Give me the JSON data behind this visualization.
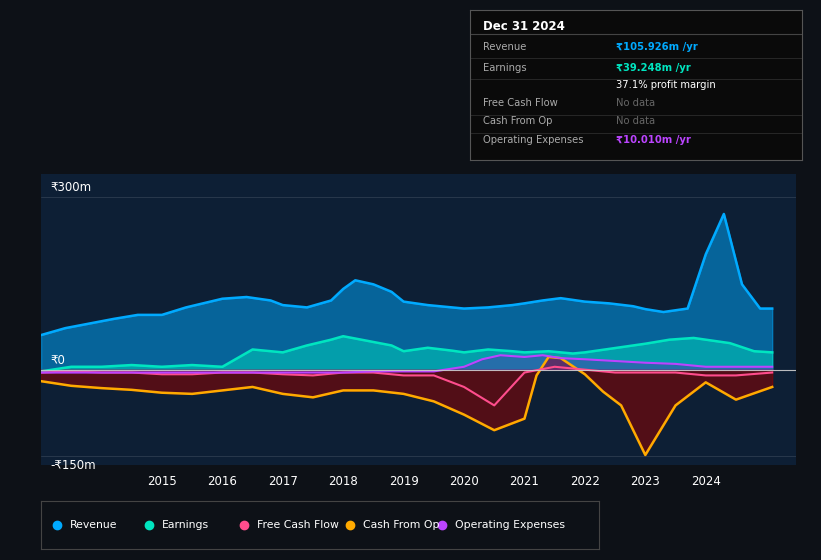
{
  "bg_color": "#0d1117",
  "plot_bg_color": "#0d1f35",
  "ylim": [
    -165,
    340
  ],
  "xlim": [
    2013.0,
    2025.5
  ],
  "xticks": [
    2015,
    2016,
    2017,
    2018,
    2019,
    2020,
    2021,
    2022,
    2023,
    2024
  ],
  "ylabel_top": "₹300m",
  "ylabel_zero": "₹0",
  "ylabel_bottom": "-₹150m",
  "ytick_vals": [
    300,
    0,
    -150
  ],
  "revenue_color": "#00aaff",
  "earnings_color": "#00e5c0",
  "fcf_color": "#ff4d8d",
  "cashfromop_color": "#ffaa00",
  "opex_color": "#bb44ff",
  "cashfromop_fill_color": "#8b0000",
  "legend_items": [
    "Revenue",
    "Earnings",
    "Free Cash Flow",
    "Cash From Op",
    "Operating Expenses"
  ],
  "legend_colors": [
    "#00aaff",
    "#00e5c0",
    "#ff4d8d",
    "#ffaa00",
    "#bb44ff"
  ],
  "info_date": "Dec 31 2024",
  "info_rows": [
    {
      "label": "Revenue",
      "value": "₹105.926m /yr",
      "color": "#00aaff"
    },
    {
      "label": "Earnings",
      "value": "₹39.248m /yr",
      "color": "#00e5c0"
    },
    {
      "label": "",
      "value": "37.1% profit margin",
      "color": "#ffffff"
    },
    {
      "label": "Free Cash Flow",
      "value": "No data",
      "color": "#666666"
    },
    {
      "label": "Cash From Op",
      "value": "No data",
      "color": "#666666"
    },
    {
      "label": "Operating Expenses",
      "value": "₹10.010m /yr",
      "color": "#bb44ff"
    }
  ],
  "revenue_x": [
    2013.0,
    2013.4,
    2013.8,
    2014.2,
    2014.6,
    2015.0,
    2015.4,
    2015.8,
    2016.0,
    2016.4,
    2016.8,
    2017.0,
    2017.4,
    2017.8,
    2018.0,
    2018.2,
    2018.5,
    2018.8,
    2019.0,
    2019.4,
    2019.8,
    2020.0,
    2020.4,
    2020.8,
    2021.0,
    2021.3,
    2021.6,
    2022.0,
    2022.4,
    2022.8,
    2023.0,
    2023.3,
    2023.7,
    2024.0,
    2024.3,
    2024.6,
    2024.9,
    2025.1
  ],
  "revenue_y": [
    60,
    72,
    80,
    88,
    95,
    95,
    108,
    118,
    123,
    126,
    120,
    112,
    108,
    120,
    140,
    155,
    148,
    135,
    118,
    112,
    108,
    106,
    108,
    112,
    115,
    120,
    124,
    118,
    115,
    110,
    105,
    100,
    106,
    200,
    270,
    148,
    106,
    106
  ],
  "earnings_x": [
    2013.0,
    2013.5,
    2014.0,
    2014.5,
    2015.0,
    2015.5,
    2016.0,
    2016.5,
    2017.0,
    2017.4,
    2017.8,
    2018.0,
    2018.4,
    2018.8,
    2019.0,
    2019.4,
    2019.8,
    2020.0,
    2020.4,
    2020.8,
    2021.0,
    2021.4,
    2021.8,
    2022.0,
    2022.4,
    2022.8,
    2023.0,
    2023.4,
    2023.8,
    2024.0,
    2024.4,
    2024.8,
    2025.1
  ],
  "earnings_y": [
    -3,
    5,
    5,
    8,
    5,
    8,
    5,
    35,
    30,
    42,
    52,
    58,
    50,
    42,
    32,
    38,
    33,
    30,
    35,
    32,
    30,
    32,
    28,
    30,
    36,
    42,
    45,
    52,
    55,
    52,
    46,
    32,
    30
  ],
  "fcf_x": [
    2013.0,
    2013.5,
    2014.0,
    2014.5,
    2015.0,
    2015.5,
    2016.0,
    2016.5,
    2017.0,
    2017.5,
    2018.0,
    2018.5,
    2019.0,
    2019.5,
    2020.0,
    2020.5,
    2021.0,
    2021.5,
    2022.0,
    2022.5,
    2023.0,
    2023.5,
    2024.0,
    2024.5,
    2025.1
  ],
  "fcf_y": [
    -5,
    -3,
    -5,
    -5,
    -8,
    -8,
    -5,
    -5,
    -8,
    -10,
    -5,
    -5,
    -10,
    -10,
    -30,
    -62,
    -5,
    5,
    0,
    -5,
    -5,
    -5,
    -10,
    -10,
    -5
  ],
  "cfo_x": [
    2013.0,
    2013.5,
    2014.0,
    2014.5,
    2015.0,
    2015.5,
    2016.0,
    2016.5,
    2017.0,
    2017.5,
    2018.0,
    2018.5,
    2019.0,
    2019.5,
    2020.0,
    2020.5,
    2021.0,
    2021.2,
    2021.4,
    2021.6,
    2022.0,
    2022.3,
    2022.6,
    2023.0,
    2023.5,
    2024.0,
    2024.5,
    2025.1
  ],
  "cfo_y": [
    -20,
    -28,
    -32,
    -35,
    -40,
    -42,
    -36,
    -30,
    -42,
    -48,
    -36,
    -36,
    -42,
    -55,
    -78,
    -105,
    -85,
    -10,
    22,
    20,
    -8,
    -38,
    -62,
    -148,
    -62,
    -22,
    -52,
    -30
  ],
  "opex_x": [
    2013.0,
    2013.5,
    2014.0,
    2014.5,
    2015.0,
    2015.5,
    2016.0,
    2016.5,
    2017.0,
    2017.5,
    2018.0,
    2018.5,
    2019.0,
    2019.5,
    2020.0,
    2020.3,
    2020.6,
    2021.0,
    2021.3,
    2021.6,
    2022.0,
    2022.5,
    2023.0,
    2023.5,
    2024.0,
    2024.5,
    2025.1
  ],
  "opex_y": [
    -5,
    -5,
    -5,
    -5,
    -5,
    -5,
    -5,
    -5,
    -5,
    -5,
    -5,
    -3,
    -3,
    -3,
    5,
    18,
    25,
    22,
    25,
    20,
    18,
    15,
    12,
    10,
    5,
    5,
    5
  ]
}
